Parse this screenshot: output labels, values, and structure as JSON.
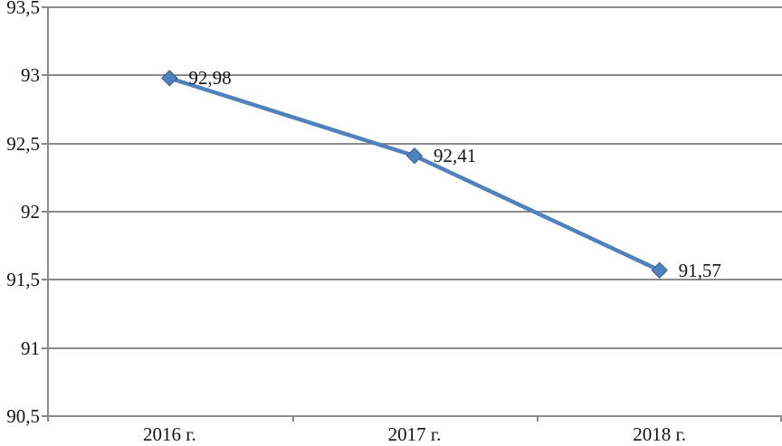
{
  "chart_data": {
    "type": "line",
    "title": "",
    "categories": [
      "2016 г.",
      "2017 г.",
      "2018 г."
    ],
    "series": [
      {
        "name": "",
        "values": [
          92.98,
          92.41,
          91.57
        ],
        "data_labels": [
          "92,98",
          "92,41",
          "91,57"
        ]
      }
    ],
    "xlabel": "",
    "ylabel": "",
    "ylim": [
      90.5,
      93.5
    ],
    "ytick_step": 0.5,
    "yticks": [
      {
        "value": 93.5,
        "label": "93,5"
      },
      {
        "value": 93.0,
        "label": "93"
      },
      {
        "value": 92.5,
        "label": "92,5"
      },
      {
        "value": 92.0,
        "label": "92"
      },
      {
        "value": 91.5,
        "label": "91,5"
      },
      {
        "value": 91.0,
        "label": "91"
      },
      {
        "value": 90.5,
        "label": "90,5"
      }
    ],
    "grid": "horizontal-on",
    "legend": "none",
    "marker": "diamond",
    "colors": {
      "line": "#4F81BD",
      "marker_fill": "#4F81BD",
      "marker_edge": "#38608f",
      "gridline": "#8a8a8a",
      "axis": "#8a8a8a",
      "text": "#141414"
    }
  }
}
